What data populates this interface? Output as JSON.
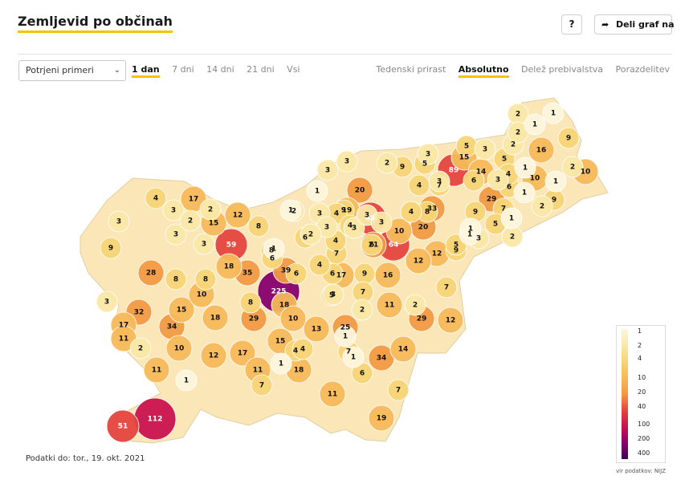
{
  "header": {
    "title": "Zemljevid po občinah",
    "help_label": "?",
    "share_label": "Deli graf na"
  },
  "controls": {
    "select_value": "Potrjeni primeri",
    "periods": [
      "1 dan",
      "7 dni",
      "14 dni",
      "21 dni",
      "Vsi"
    ],
    "active_period": "1 dan",
    "modes": [
      "Tedenski prirast",
      "Absolutno",
      "Delež prebivalstva",
      "Porazdelitev"
    ],
    "active_mode": "Absolutno"
  },
  "footer": {
    "updated": "Podatki do: tor., 19. okt. 2021",
    "source": "vir podatkov: NIJZ"
  },
  "legend": {
    "ticks": [
      "1",
      "2",
      "4",
      "10",
      "20",
      "40",
      "100",
      "200",
      "400"
    ],
    "colors": [
      "#fdf6dc",
      "#fae8a6",
      "#f7d577",
      "#f5b95a",
      "#f19a44",
      "#e4443e",
      "#c9134f",
      "#86006e",
      "#3d0052"
    ]
  },
  "municipalities": [
    {
      "v": 225
    },
    {
      "v": 112
    },
    {
      "v": 89
    },
    {
      "v": 64
    },
    {
      "v": 59
    },
    {
      "v": 51
    },
    {
      "v": 48
    },
    {
      "v": 39
    },
    {
      "v": 35
    },
    {
      "v": 34
    },
    {
      "v": 34
    },
    {
      "v": 33
    },
    {
      "v": 32
    },
    {
      "v": 29
    },
    {
      "v": 29
    },
    {
      "v": 29
    },
    {
      "v": 28
    },
    {
      "v": 25
    },
    {
      "v": 21
    },
    {
      "v": 20
    },
    {
      "v": 20
    },
    {
      "v": 19
    },
    {
      "v": 19
    },
    {
      "v": 18
    },
    {
      "v": 18
    },
    {
      "v": 18
    },
    {
      "v": 18
    },
    {
      "v": 17
    },
    {
      "v": 17
    },
    {
      "v": 17
    },
    {
      "v": 17
    },
    {
      "v": 16
    },
    {
      "v": 16
    },
    {
      "v": 15
    },
    {
      "v": 15
    },
    {
      "v": 15
    },
    {
      "v": 15
    },
    {
      "v": 14
    },
    {
      "v": 14
    },
    {
      "v": 13
    },
    {
      "v": 12
    },
    {
      "v": 12
    },
    {
      "v": 12
    },
    {
      "v": 12
    },
    {
      "v": 12
    },
    {
      "v": 11
    },
    {
      "v": 11
    },
    {
      "v": 11
    },
    {
      "v": 11
    },
    {
      "v": 11
    },
    {
      "v": 10
    },
    {
      "v": 10
    },
    {
      "v": 10
    },
    {
      "v": 10
    },
    {
      "v": 10
    },
    {
      "v": 10
    },
    {
      "v": 9
    },
    {
      "v": 9
    },
    {
      "v": 9
    },
    {
      "v": 9
    },
    {
      "v": 9
    },
    {
      "v": 9
    },
    {
      "v": 9
    },
    {
      "v": 9
    },
    {
      "v": 8
    },
    {
      "v": 8
    },
    {
      "v": 8
    },
    {
      "v": 8
    },
    {
      "v": 8
    },
    {
      "v": 8
    },
    {
      "v": 7
    },
    {
      "v": 7
    },
    {
      "v": 7
    },
    {
      "v": 7
    },
    {
      "v": 7
    },
    {
      "v": 7
    },
    {
      "v": 7
    },
    {
      "v": 7
    },
    {
      "v": 6
    },
    {
      "v": 6
    },
    {
      "v": 6
    },
    {
      "v": 6
    },
    {
      "v": 6
    },
    {
      "v": 6
    },
    {
      "v": 6
    },
    {
      "v": 6
    },
    {
      "v": 5
    },
    {
      "v": 5
    },
    {
      "v": 5
    },
    {
      "v": 5
    },
    {
      "v": 5
    },
    {
      "v": 5
    },
    {
      "v": 4
    },
    {
      "v": 4
    },
    {
      "v": 4
    },
    {
      "v": 4
    },
    {
      "v": 4
    },
    {
      "v": 4
    },
    {
      "v": 4
    },
    {
      "v": 4
    },
    {
      "v": 4
    },
    {
      "v": 4
    },
    {
      "v": 3
    },
    {
      "v": 3
    },
    {
      "v": 3
    },
    {
      "v": 3
    },
    {
      "v": 3
    },
    {
      "v": 3
    },
    {
      "v": 3
    },
    {
      "v": 3
    },
    {
      "v": 3
    },
    {
      "v": 3
    },
    {
      "v": 3
    },
    {
      "v": 3
    },
    {
      "v": 3
    },
    {
      "v": 3
    },
    {
      "v": 3
    },
    {
      "v": 3
    },
    {
      "v": 3
    },
    {
      "v": 3
    },
    {
      "v": 2
    },
    {
      "v": 2
    },
    {
      "v": 2
    },
    {
      "v": 2
    },
    {
      "v": 2
    },
    {
      "v": 2
    },
    {
      "v": 2
    },
    {
      "v": 2
    },
    {
      "v": 2
    },
    {
      "v": 2
    },
    {
      "v": 2
    },
    {
      "v": 2
    },
    {
      "v": 2
    },
    {
      "v": 2
    },
    {
      "v": 1
    },
    {
      "v": 1
    },
    {
      "v": 1
    },
    {
      "v": 1
    },
    {
      "v": 1
    },
    {
      "v": 1
    },
    {
      "v": 1
    },
    {
      "v": 1
    },
    {
      "v": 1
    },
    {
      "v": 1
    },
    {
      "v": 1
    },
    {
      "v": 1
    },
    {
      "v": 1
    },
    {
      "v": 1
    },
    {
      "v": 1
    }
  ]
}
